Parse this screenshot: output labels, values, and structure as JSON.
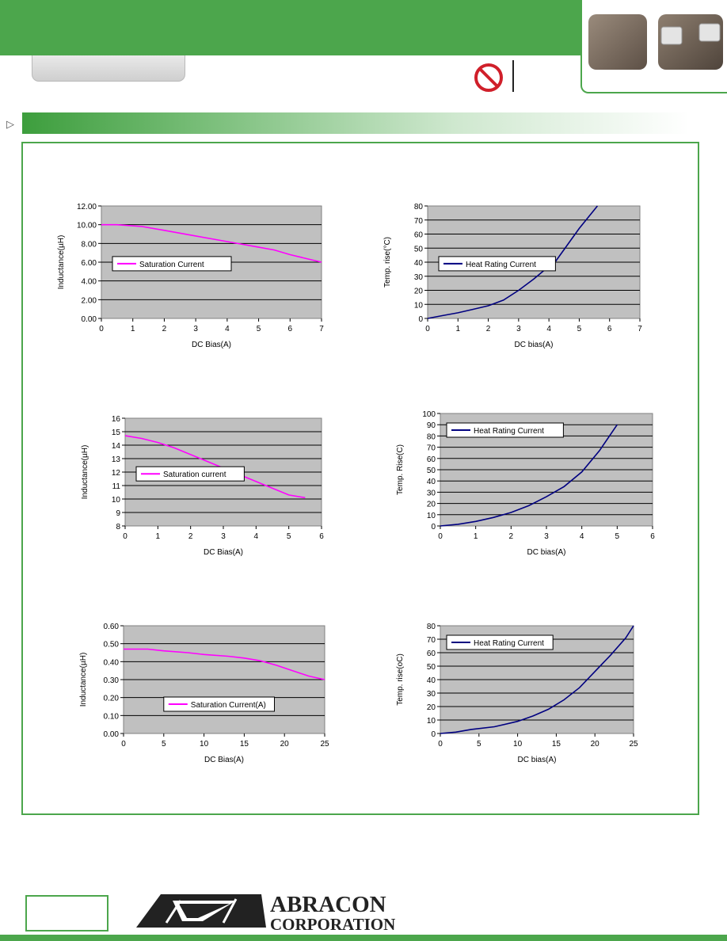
{
  "brand": {
    "line1": "ABRACON",
    "line2": "CORPORATION"
  },
  "colors": {
    "brand_green": "#4ca64c",
    "plot_bg": "#c0c0c0",
    "magenta": "#ff00ff",
    "navy": "#000080"
  },
  "icons": {
    "prohibit": "prohibited-sign-icon",
    "section": "triangle-pointer-icon"
  },
  "chart_data": [
    {
      "type": "line",
      "legend": "Saturation Current",
      "legend_pos": "center-left",
      "xlabel": "DC Bias(A)",
      "ylabel": "Inductance(µH)",
      "xlim": [
        0,
        7
      ],
      "ylim": [
        0,
        12
      ],
      "xticks": [
        "0",
        "1",
        "2",
        "3",
        "4",
        "5",
        "6",
        "7"
      ],
      "yticks": [
        "0.00",
        "2.00",
        "4.00",
        "6.00",
        "8.00",
        "10.00",
        "12.00"
      ],
      "grid": true,
      "series": [
        {
          "name": "Saturation Current",
          "color": "#ff00ff",
          "x": [
            0,
            0.5,
            1.3,
            2,
            3,
            4,
            5,
            5.5,
            6,
            7
          ],
          "y": [
            10,
            10,
            9.8,
            9.4,
            8.8,
            8.2,
            7.6,
            7.3,
            6.8,
            6.0
          ]
        }
      ]
    },
    {
      "type": "line",
      "legend": "Heat Rating Current",
      "legend_pos": "center-left",
      "xlabel": "DC bias(A)",
      "ylabel": "Temp. rise(°C)",
      "xlim": [
        0,
        7
      ],
      "ylim": [
        0,
        80
      ],
      "xticks": [
        "0",
        "1",
        "2",
        "3",
        "4",
        "5",
        "6",
        "7"
      ],
      "yticks": [
        "0",
        "10",
        "20",
        "30",
        "40",
        "50",
        "60",
        "70",
        "80"
      ],
      "grid": true,
      "series": [
        {
          "name": "Heat Rating Current",
          "color": "#000080",
          "x": [
            0,
            0.5,
            1,
            1.5,
            2,
            2.5,
            3,
            3.5,
            4,
            4.2,
            4.5,
            5,
            5.6
          ],
          "y": [
            0,
            2,
            4,
            6.5,
            9,
            13,
            20,
            28,
            37,
            40,
            49,
            64,
            80
          ]
        }
      ]
    },
    {
      "type": "line",
      "legend": "Saturation current",
      "legend_pos": "center-left",
      "xlabel": "DC Bias(A)",
      "ylabel": "Inductance(µH)",
      "xlim": [
        0,
        6
      ],
      "ylim": [
        8,
        16
      ],
      "xticks": [
        "0",
        "1",
        "2",
        "3",
        "4",
        "5",
        "6"
      ],
      "yticks": [
        "8",
        "9",
        "10",
        "11",
        "12",
        "13",
        "14",
        "15",
        "16"
      ],
      "grid": true,
      "series": [
        {
          "name": "Saturation current",
          "color": "#ff00ff",
          "x": [
            0,
            0.5,
            1,
            1.5,
            2,
            2.5,
            3,
            3.5,
            4,
            4.5,
            5,
            5.5
          ],
          "y": [
            14.7,
            14.5,
            14.2,
            13.8,
            13.3,
            12.8,
            12.3,
            11.8,
            11.3,
            10.8,
            10.3,
            10.1
          ]
        }
      ]
    },
    {
      "type": "line",
      "legend": "Heat Rating Current",
      "legend_pos": "top-left",
      "xlabel": "DC bias(A)",
      "ylabel": "Temp. Rise(C)",
      "xlim": [
        0,
        6
      ],
      "ylim": [
        0,
        100
      ],
      "xticks": [
        "0",
        "1",
        "2",
        "3",
        "4",
        "5",
        "6"
      ],
      "yticks": [
        "0",
        "10",
        "20",
        "30",
        "40",
        "50",
        "60",
        "70",
        "80",
        "90",
        "100"
      ],
      "grid": true,
      "series": [
        {
          "name": "Heat Rating Current",
          "color": "#000080",
          "x": [
            0,
            0.5,
            1,
            1.5,
            2,
            2.5,
            3,
            3.5,
            4,
            4.5,
            5
          ],
          "y": [
            0,
            1.5,
            4,
            7.5,
            12,
            18,
            26,
            35,
            48,
            67,
            90
          ]
        }
      ]
    },
    {
      "type": "line",
      "legend": "Saturation Current(A)",
      "legend_pos": "bottom-center",
      "xlabel": "DC Bias(A)",
      "ylabel": "Inductance(µH)",
      "xlim": [
        0,
        25
      ],
      "ylim": [
        0,
        0.6
      ],
      "xticks": [
        "0",
        "5",
        "10",
        "15",
        "20",
        "25"
      ],
      "yticks": [
        "0.00",
        "0.10",
        "0.20",
        "0.30",
        "0.40",
        "0.50",
        "0.60"
      ],
      "grid": true,
      "series": [
        {
          "name": "Saturation Current(A)",
          "color": "#ff00ff",
          "x": [
            0,
            3,
            5,
            8,
            10,
            13,
            15,
            17,
            19,
            21,
            23,
            25
          ],
          "y": [
            0.47,
            0.47,
            0.46,
            0.45,
            0.44,
            0.43,
            0.42,
            0.405,
            0.38,
            0.35,
            0.32,
            0.3
          ]
        }
      ]
    },
    {
      "type": "line",
      "legend": "Heat Rating Current",
      "legend_pos": "top-left",
      "xlabel": "DC bias(A)",
      "ylabel": "Temp. rise(oC)",
      "xlim": [
        0,
        25
      ],
      "ylim": [
        0,
        80
      ],
      "xticks": [
        "0",
        "5",
        "10",
        "15",
        "20",
        "25"
      ],
      "yticks": [
        "0",
        "10",
        "20",
        "30",
        "40",
        "50",
        "60",
        "70",
        "80"
      ],
      "grid": true,
      "series": [
        {
          "name": "Heat Rating Current",
          "color": "#000080",
          "x": [
            0,
            2,
            4,
            7,
            10,
            12,
            14,
            16,
            18,
            20,
            22,
            24,
            25
          ],
          "y": [
            0,
            1,
            3,
            5,
            9,
            13,
            18,
            25,
            34,
            46,
            58,
            71,
            80
          ]
        }
      ]
    }
  ]
}
